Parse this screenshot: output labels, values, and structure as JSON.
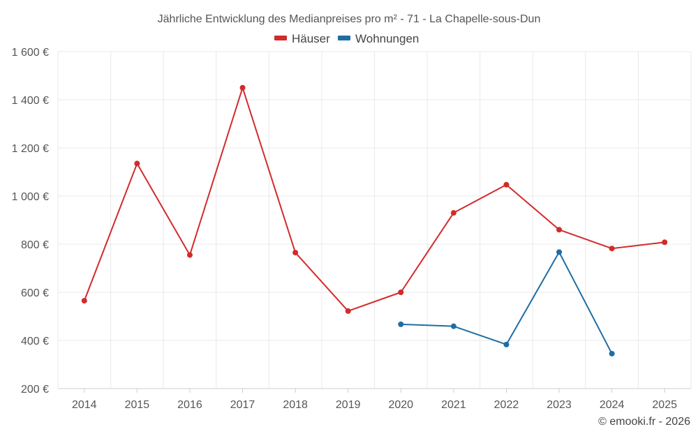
{
  "chart_data": {
    "type": "line",
    "title": "Jährliche Entwicklung des Medianpreises pro m² - 71 - La Chapelle-sous-Dun",
    "categories": [
      "2014",
      "2015",
      "2016",
      "2017",
      "2018",
      "2019",
      "2020",
      "2021",
      "2022",
      "2023",
      "2024",
      "2025"
    ],
    "ylim": [
      200,
      1600
    ],
    "yticks": [
      200,
      400,
      600,
      800,
      1000,
      1200,
      1400,
      1600
    ],
    "ytick_labels": [
      "200 €",
      "400 €",
      "600 €",
      "800 €",
      "1 000 €",
      "1 200 €",
      "1 400 €",
      "1 600 €"
    ],
    "grid": true,
    "legend_position": "top-center",
    "series": [
      {
        "name": "Häuser",
        "color": "#d32a2a",
        "values": [
          565,
          1135,
          755,
          1450,
          765,
          522,
          600,
          930,
          1047,
          860,
          782,
          808
        ]
      },
      {
        "name": "Wohnungen",
        "color": "#1f6ea3",
        "values": [
          null,
          null,
          null,
          null,
          null,
          null,
          467,
          459,
          383,
          767,
          345,
          null
        ]
      }
    ],
    "credit": "© emooki.fr - 2026"
  }
}
